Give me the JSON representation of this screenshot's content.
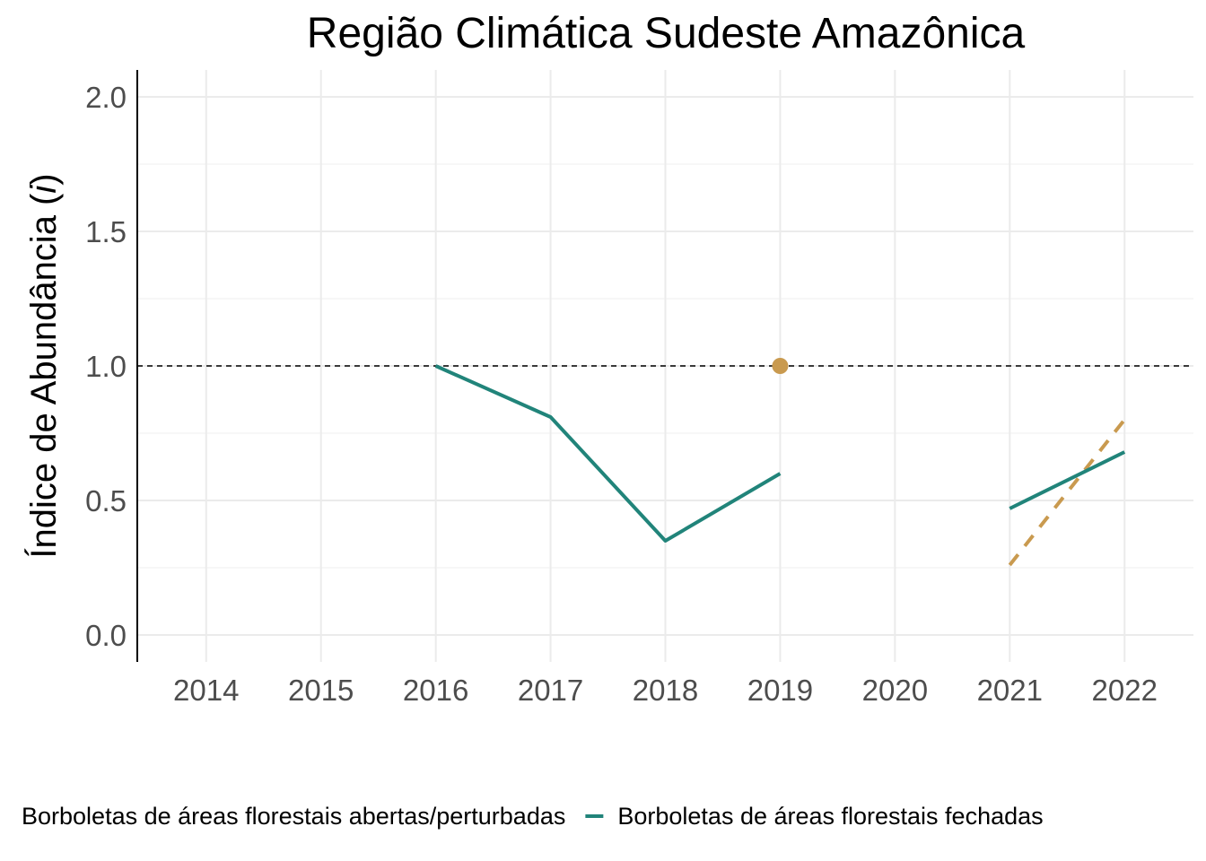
{
  "chart_data": {
    "type": "line",
    "title": "Região Climática Sudeste Amazônica",
    "ylabel_prefix": "Índice de Abundância (",
    "ylabel_italic": "i",
    "ylabel_suffix": ")",
    "xlabel": "",
    "x_ticks": [
      "2014",
      "2015",
      "2016",
      "2017",
      "2018",
      "2019",
      "2020",
      "2021",
      "2022"
    ],
    "y_ticks": [
      "0.0",
      "0.5",
      "1.0",
      "1.5",
      "2.0"
    ],
    "xlim": [
      2013.4,
      2022.6
    ],
    "ylim": [
      -0.1,
      2.1
    ],
    "reference_line": 1.0,
    "grid": true,
    "legend_position": "bottom",
    "series": [
      {
        "name": "Borboletas de áreas florestais abertas/perturbadas",
        "color": "#c99a4f",
        "linestyle": "dashed",
        "segments": [
          [
            [
              2019,
              1.0
            ]
          ],
          [
            [
              2021,
              0.26
            ],
            [
              2022,
              0.8
            ]
          ]
        ]
      },
      {
        "name": "Borboletas de áreas florestais fechadas",
        "color": "#21847a",
        "linestyle": "solid",
        "segments": [
          [
            [
              2016,
              1.0
            ],
            [
              2017,
              0.81
            ],
            [
              2018,
              0.35
            ],
            [
              2019,
              0.6
            ]
          ],
          [
            [
              2021,
              0.47
            ],
            [
              2022,
              0.68
            ]
          ]
        ]
      }
    ]
  }
}
